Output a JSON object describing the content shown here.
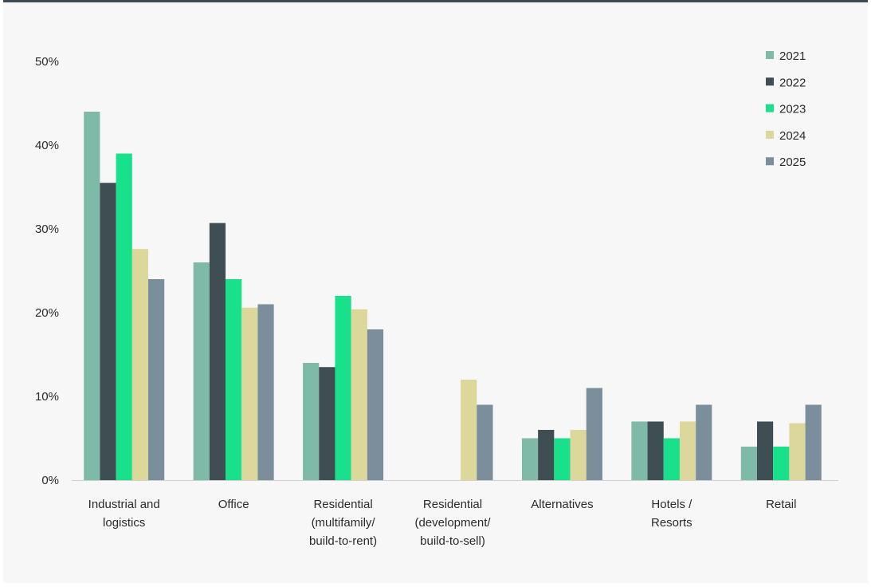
{
  "chart_data": {
    "type": "bar",
    "title": "",
    "xlabel": "",
    "ylabel": "",
    "ylim": [
      0,
      50
    ],
    "yticks": [
      0,
      10,
      20,
      30,
      40,
      50
    ],
    "ytick_labels": [
      "0%",
      "10%",
      "20%",
      "30%",
      "40%",
      "50%"
    ],
    "grid": false,
    "legend_position": "top-right",
    "categories": [
      [
        "Industrial and",
        "logistics"
      ],
      [
        "Office"
      ],
      [
        "Residential",
        "(multifamily/",
        "build-to-rent)"
      ],
      [
        "Residential",
        "(development/",
        "build-to-sell)"
      ],
      [
        "Alternatives"
      ],
      [
        "Hotels /",
        "Resorts"
      ],
      [
        "Retail"
      ]
    ],
    "series": [
      {
        "name": "2021",
        "color": "#7fbaa9",
        "values": [
          44,
          26,
          14,
          null,
          5,
          7,
          4
        ]
      },
      {
        "name": "2022",
        "color": "#3f4e52",
        "values": [
          35.5,
          30.7,
          13.5,
          null,
          6,
          7,
          7
        ]
      },
      {
        "name": "2023",
        "color": "#19e08a",
        "values": [
          39,
          24,
          22,
          null,
          5,
          5,
          4
        ]
      },
      {
        "name": "2024",
        "color": "#dcd79b",
        "values": [
          27.6,
          20.6,
          20.4,
          12,
          6,
          7,
          6.8
        ]
      },
      {
        "name": "2025",
        "color": "#7a8f9b",
        "values": [
          24,
          21,
          18,
          9,
          11,
          9,
          9
        ]
      }
    ]
  }
}
